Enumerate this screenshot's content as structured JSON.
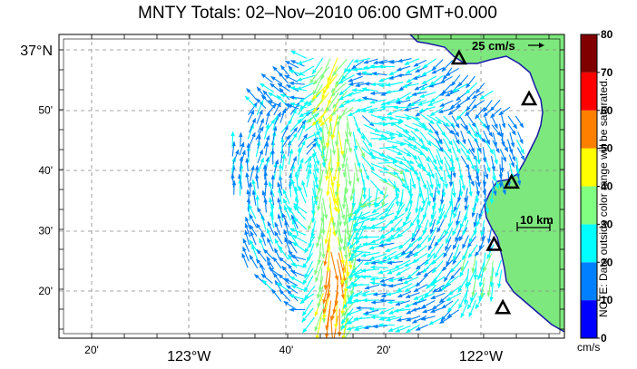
{
  "title": "MNTY Totals: 02–Nov–2010 06:00 GMT+0.000",
  "map": {
    "lat_labels": [
      {
        "lat": 37.0,
        "text": "37°N"
      },
      {
        "lat": 36.8333,
        "text": "50'"
      },
      {
        "lat": 36.6667,
        "text": "40'"
      },
      {
        "lat": 36.5,
        "text": "30'"
      },
      {
        "lat": 36.3333,
        "text": "20'"
      }
    ],
    "lon_labels": [
      {
        "lon": -123.3333,
        "text": "20'"
      },
      {
        "lon": -123.0,
        "text": "123°W"
      },
      {
        "lon": -122.6667,
        "text": "40'"
      },
      {
        "lon": -122.3333,
        "text": "20'"
      },
      {
        "lon": -122.0,
        "text": "122°W"
      }
    ],
    "reference_vector_label": "25 cm/s",
    "reference_vector_speed": 25,
    "scale_bar_label": "10 km",
    "scale_bar_km": 10,
    "land_color": "#7de87d",
    "coast_color": "#1a1aaa",
    "stations": [
      {
        "lon": -122.075,
        "lat": 36.975
      },
      {
        "lon": -121.835,
        "lat": 36.862
      },
      {
        "lon": -121.895,
        "lat": 36.632
      },
      {
        "lon": -121.955,
        "lat": 36.46
      },
      {
        "lon": -121.925,
        "lat": 36.285
      }
    ]
  },
  "colorbar": {
    "ticks": [
      "0",
      "10",
      "20",
      "30",
      "40",
      "50",
      "60",
      "70",
      "80"
    ],
    "colors": [
      "#0000ff",
      "#0080ff",
      "#00ffff",
      "#80ff80",
      "#ffff00",
      "#ff8000",
      "#ff0000",
      "#800000"
    ],
    "unit": "cm/s",
    "note": "NOTE: Data outside color range will be saturated."
  },
  "current_field": {
    "lon_range": [
      -122.85,
      -121.85
    ],
    "lat_range": [
      36.24,
      36.98
    ],
    "grid_step_deg": 0.0278,
    "dominant_flow": "cyclonic eddy off Monterey Bay with southward jet near 122.5°W",
    "speed_range_cm_s": [
      5,
      70
    ]
  }
}
